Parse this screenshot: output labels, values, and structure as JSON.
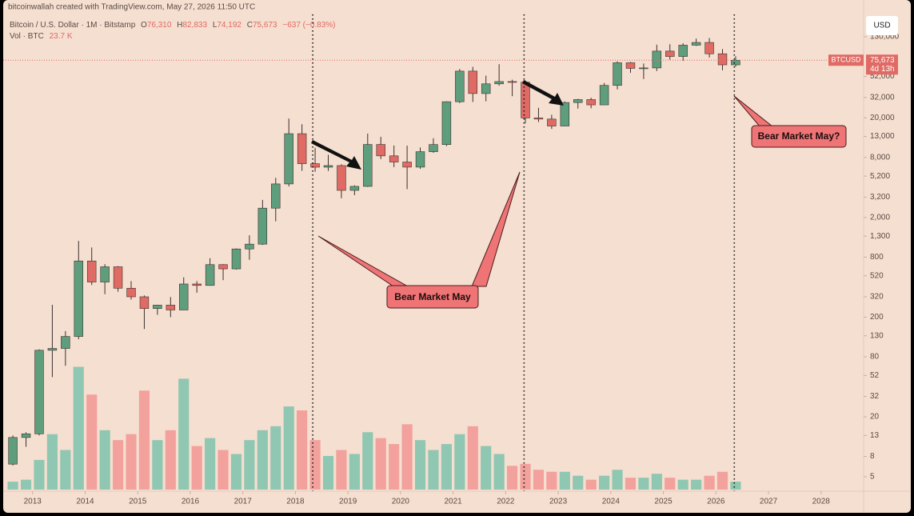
{
  "header": "bitcoinwallah created with TradingView.com, May 27, 2026 11:50 UTC",
  "symbol_line": "Bitcoin / U.S. Dollar · 1M · Bitstamp",
  "quote": [
    {
      "label": "O",
      "value": "76,310"
    },
    {
      "label": "H",
      "value": "82,833"
    },
    {
      "label": "L",
      "value": "74,192"
    },
    {
      "label": "C",
      "value": "75,673"
    }
  ],
  "change": "−637 (−0.83%)",
  "volume_label": "Vol · BTC",
  "volume_value": "23.7 K",
  "currency_button": "USD",
  "price_tag": {
    "symbol": "BTCUSD",
    "price": "75,673",
    "countdown": "4d 13h"
  },
  "chart_data": {
    "type": "candlestick",
    "log_scale": true,
    "up_color": "#5f9e7c",
    "down_color": "#e06a64",
    "volume_up_color": "#8fc7b2",
    "volume_down_color": "#f2a19c",
    "xlim": [
      2012.38,
      2028.81
    ],
    "xticks": [
      2013,
      2014,
      2015,
      2016,
      2017,
      2018,
      2019,
      2020,
      2021,
      2022,
      2023,
      2024,
      2025,
      2026,
      2027,
      2028
    ],
    "ylim": [
      3.72,
      218000
    ],
    "yticks": [
      5,
      8,
      13,
      20,
      32,
      52,
      80,
      130,
      200,
      320,
      520,
      800,
      {
        "value": 1300,
        "label": "1,300"
      },
      {
        "value": 2000,
        "label": "2,000"
      },
      {
        "value": 3200,
        "label": "3,200"
      },
      {
        "value": 5200,
        "label": "5,200"
      },
      {
        "value": 8000,
        "label": "8,000"
      },
      {
        "value": 13000,
        "label": "13,000"
      },
      {
        "value": 20000,
        "label": "20,000"
      },
      {
        "value": 32000,
        "label": "32,000"
      },
      {
        "value": 52000,
        "label": "52,000"
      },
      {
        "value": 130000,
        "label": "130,000"
      }
    ],
    "y2lim": [
      0,
      2400
    ],
    "x": [
      2012.5,
      2012.75,
      2013,
      2013.25,
      2013.5,
      2013.75,
      2014,
      2014.25,
      2014.5,
      2014.75,
      2015,
      2015.25,
      2015.5,
      2015.75,
      2016,
      2016.25,
      2016.5,
      2016.75,
      2017,
      2017.25,
      2017.5,
      2017.75,
      2018,
      2018.25,
      2018.5,
      2018.75,
      2019,
      2019.25,
      2019.5,
      2019.75,
      2020,
      2020.25,
      2020.5,
      2020.75,
      2021,
      2021.25,
      2021.5,
      2021.75,
      2022,
      2022.25,
      2022.5,
      2022.75,
      2023,
      2023.25,
      2023.5,
      2023.75,
      2024,
      2024.25,
      2024.5,
      2024.75,
      2025,
      2025.25,
      2025.5,
      2025.75,
      2026,
      2026.25
    ],
    "open": [
      6.7,
      12.4,
      13.5,
      93,
      97,
      128,
      732,
      450,
      640,
      390,
      320,
      244,
      264,
      236,
      430,
      416,
      673,
      610,
      966,
      1080,
      2480,
      4340,
      13860,
      6930,
      6390,
      6630,
      3740,
      4100,
      10800,
      8300,
      7200,
      6400,
      9140,
      10780,
      28990,
      58800,
      35040,
      43820,
      46200,
      45540,
      19930,
      19420,
      16540,
      28470,
      30470,
      26970,
      42280,
      71330,
      62700,
      63300,
      93400,
      82500,
      107100,
      114000,
      87800,
      68000
    ],
    "high": [
      13,
      14,
      95,
      266,
      145,
      1163,
      1000,
      680,
      650,
      460,
      330,
      266,
      318,
      502,
      460,
      780,
      680,
      980,
      1325,
      3000,
      5000,
      19666,
      17250,
      9990,
      8500,
      6840,
      4200,
      13880,
      12900,
      10540,
      10500,
      10080,
      12470,
      29300,
      61800,
      64900,
      52900,
      69000,
      48200,
      47450,
      25200,
      21470,
      29200,
      31000,
      31800,
      44700,
      73800,
      72700,
      70000,
      108300,
      109500,
      111900,
      124500,
      126200,
      97900,
      82833
    ],
    "low": [
      6.5,
      10,
      13,
      50,
      65,
      120,
      420,
      340,
      360,
      300,
      152,
      211,
      200,
      236,
      352,
      413,
      470,
      600,
      752,
      1060,
      1830,
      4100,
      5870,
      5750,
      5860,
      3120,
      3350,
      4050,
      7700,
      6400,
      3850,
      6150,
      8900,
      10400,
      28130,
      28800,
      29300,
      42000,
      32950,
      17600,
      18150,
      15480,
      16500,
      24750,
      24900,
      26950,
      38500,
      56500,
      49000,
      58900,
      76600,
      74400,
      105200,
      80600,
      60000,
      65000
    ],
    "close": [
      12.4,
      13.5,
      93,
      97,
      128,
      732,
      450,
      640,
      390,
      320,
      244,
      264,
      236,
      430,
      416,
      673,
      610,
      966,
      1080,
      2480,
      4340,
      13860,
      6930,
      6390,
      6630,
      3740,
      4100,
      10800,
      8300,
      7200,
      6400,
      9140,
      10780,
      28990,
      58800,
      35040,
      43820,
      46200,
      45540,
      19930,
      19420,
      16540,
      28470,
      30470,
      26970,
      42280,
      71330,
      62700,
      63300,
      93400,
      82500,
      107100,
      114000,
      87800,
      68000,
      75673
    ],
    "volume": [
      40,
      50,
      150,
      280,
      200,
      620,
      480,
      300,
      250,
      280,
      500,
      250,
      300,
      560,
      220,
      260,
      200,
      180,
      250,
      300,
      320,
      420,
      400,
      250,
      170,
      200,
      180,
      290,
      260,
      230,
      330,
      250,
      200,
      230,
      280,
      320,
      220,
      180,
      120,
      130,
      100,
      90,
      90,
      70,
      50,
      70,
      100,
      60,
      60,
      80,
      60,
      50,
      50,
      70,
      90,
      40
    ],
    "vlines": [
      2018.33,
      2022.35,
      2026.35
    ],
    "annotations": [
      "Bear Market May",
      "Bear Market May?"
    ]
  }
}
